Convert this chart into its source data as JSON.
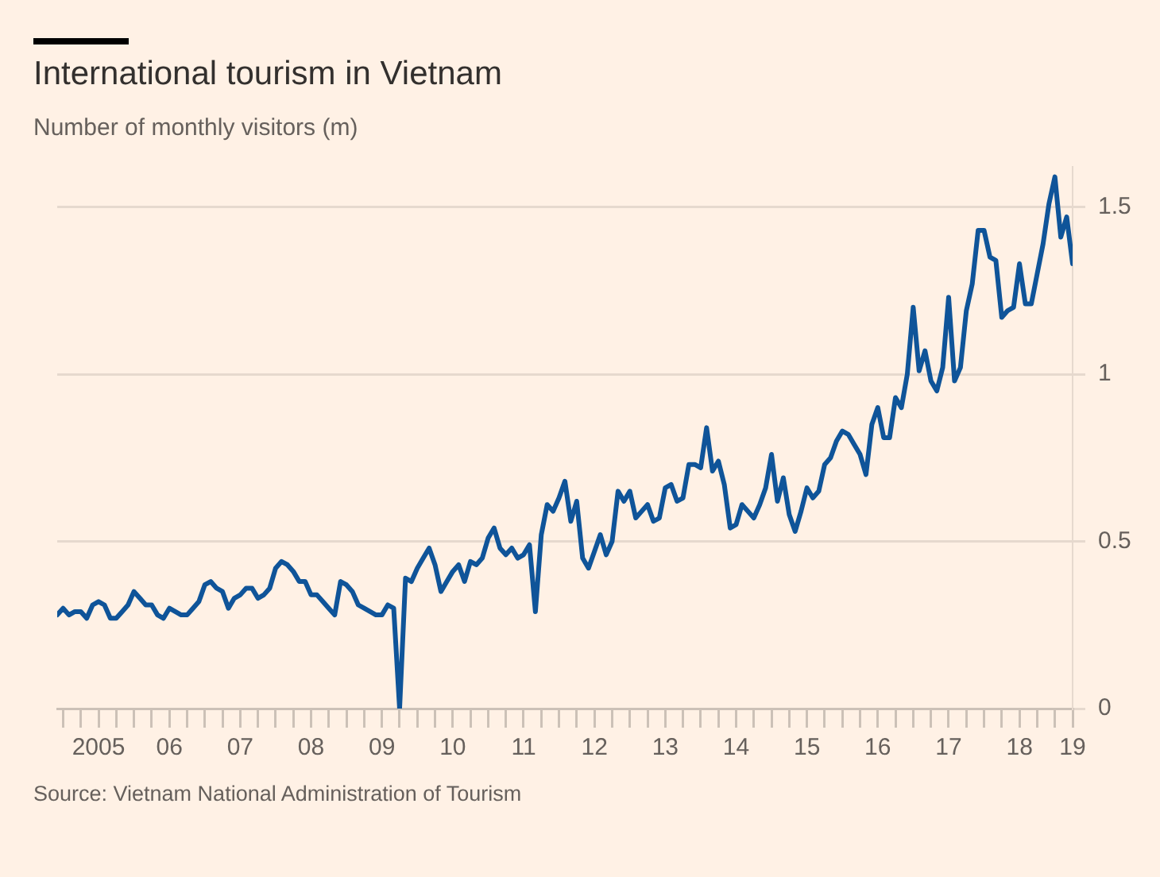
{
  "chart_data": {
    "type": "line",
    "title": "International tourism in Vietnam",
    "subtitle": "Number of monthly visitors (m)",
    "annotations": [
      "Source: Vietnam National Administration of Tourism"
    ],
    "x": [
      "2004-12",
      "2005-01",
      "2005-02",
      "2005-03",
      "2005-04",
      "2005-05",
      "2005-06",
      "2005-07",
      "2005-08",
      "2005-09",
      "2005-10",
      "2005-11",
      "2005-12",
      "2006-01",
      "2006-02",
      "2006-03",
      "2006-04",
      "2006-05",
      "2006-06",
      "2006-07",
      "2006-08",
      "2006-09",
      "2006-10",
      "2006-11",
      "2006-12",
      "2007-01",
      "2007-02",
      "2007-03",
      "2007-04",
      "2007-05",
      "2007-06",
      "2007-07",
      "2007-08",
      "2007-09",
      "2007-10",
      "2007-11",
      "2007-12",
      "2008-01",
      "2008-02",
      "2008-03",
      "2008-04",
      "2008-05",
      "2008-06",
      "2008-07",
      "2008-08",
      "2008-09",
      "2008-10",
      "2008-11",
      "2008-12",
      "2009-01",
      "2009-02",
      "2009-03",
      "2009-04",
      "2009-05",
      "2009-06",
      "2009-07",
      "2009-08",
      "2009-09",
      "2009-10",
      "2009-11",
      "2009-12",
      "2010-01",
      "2010-02",
      "2010-03",
      "2010-04",
      "2010-05",
      "2010-06",
      "2010-07",
      "2010-08",
      "2010-09",
      "2010-10",
      "2010-11",
      "2010-12",
      "2011-01",
      "2011-02",
      "2011-03",
      "2011-04",
      "2011-05",
      "2011-06",
      "2011-07",
      "2011-08",
      "2011-09",
      "2011-10",
      "2011-11",
      "2011-12",
      "2012-01",
      "2012-02",
      "2012-03",
      "2012-04",
      "2012-05",
      "2012-06",
      "2012-07",
      "2012-08",
      "2012-09",
      "2012-10",
      "2012-11",
      "2012-12",
      "2013-01",
      "2013-02",
      "2013-03",
      "2013-04",
      "2013-05",
      "2013-06",
      "2013-07",
      "2013-08",
      "2013-09",
      "2013-10",
      "2013-11",
      "2013-12",
      "2014-01",
      "2014-02",
      "2014-03",
      "2014-04",
      "2014-05",
      "2014-06",
      "2014-07",
      "2014-08",
      "2014-09",
      "2014-10",
      "2014-11",
      "2014-12",
      "2015-01",
      "2015-02",
      "2015-03",
      "2015-04",
      "2015-05",
      "2015-06",
      "2015-07",
      "2015-08",
      "2015-09",
      "2015-10",
      "2015-11",
      "2015-12",
      "2016-01",
      "2016-02",
      "2016-03",
      "2016-04",
      "2016-05",
      "2016-06",
      "2016-07",
      "2016-08",
      "2016-09",
      "2016-10",
      "2016-11",
      "2016-12",
      "2017-01",
      "2017-02",
      "2017-03",
      "2017-04",
      "2017-05",
      "2017-06",
      "2017-07",
      "2017-08",
      "2017-09",
      "2017-10",
      "2017-11",
      "2017-12",
      "2018-01",
      "2018-02",
      "2018-03",
      "2018-04",
      "2018-05",
      "2018-06",
      "2018-07",
      "2018-08",
      "2018-09",
      "2018-10",
      "2018-11",
      "2018-12",
      "2019-01",
      "2019-02",
      "2019-03",
      "2019-04"
    ],
    "series": [
      {
        "color": "#0f5499",
        "values": [
          0.28,
          0.3,
          0.28,
          0.29,
          0.29,
          0.27,
          0.31,
          0.32,
          0.31,
          0.27,
          0.27,
          0.29,
          0.31,
          0.35,
          0.33,
          0.31,
          0.31,
          0.28,
          0.27,
          0.3,
          0.29,
          0.28,
          0.28,
          0.3,
          0.32,
          0.37,
          0.38,
          0.36,
          0.35,
          0.3,
          0.33,
          0.34,
          0.36,
          0.36,
          0.33,
          0.34,
          0.36,
          0.42,
          0.44,
          0.43,
          0.41,
          0.38,
          0.38,
          0.34,
          0.34,
          0.32,
          0.3,
          0.28,
          0.38,
          0.37,
          0.35,
          0.31,
          0.3,
          0.29,
          0.28,
          0.28,
          0.31,
          0.3,
          0.0,
          0.39,
          0.38,
          0.42,
          0.45,
          0.48,
          0.43,
          0.35,
          0.38,
          0.41,
          0.43,
          0.38,
          0.44,
          0.43,
          0.45,
          0.51,
          0.54,
          0.48,
          0.46,
          0.48,
          0.45,
          0.46,
          0.49,
          0.29,
          0.52,
          0.61,
          0.59,
          0.63,
          0.68,
          0.56,
          0.62,
          0.45,
          0.42,
          0.47,
          0.52,
          0.46,
          0.5,
          0.65,
          0.62,
          0.65,
          0.57,
          0.59,
          0.61,
          0.56,
          0.57,
          0.66,
          0.67,
          0.62,
          0.63,
          0.73,
          0.73,
          0.72,
          0.84,
          0.71,
          0.74,
          0.67,
          0.54,
          0.55,
          0.61,
          0.59,
          0.57,
          0.61,
          0.66,
          0.76,
          0.62,
          0.69,
          0.58,
          0.53,
          0.59,
          0.66,
          0.63,
          0.65,
          0.73,
          0.75,
          0.8,
          0.83,
          0.82,
          0.79,
          0.76,
          0.7,
          0.85,
          0.9,
          0.81,
          0.81,
          0.93,
          0.9,
          1.0,
          1.2,
          1.01,
          1.07,
          0.98,
          0.95,
          1.02,
          1.23,
          0.98,
          1.02,
          1.19,
          1.27,
          1.43,
          1.43,
          1.35,
          1.34,
          1.17,
          1.19,
          1.2,
          1.33,
          1.21,
          1.21,
          1.3,
          1.39,
          1.51,
          1.59,
          1.41,
          1.47,
          1.33
        ]
      }
    ],
    "xlim": [
      "2004-12",
      "2019-04"
    ],
    "xticks": [
      {
        "value": "2005-01",
        "label": null
      },
      {
        "value": "2005-04",
        "label": null
      },
      {
        "value": "2005-07",
        "label": "2005"
      },
      {
        "value": "2005-10",
        "label": null
      },
      {
        "value": "2006-01",
        "label": null
      },
      {
        "value": "2006-04",
        "label": null
      },
      {
        "value": "2006-07",
        "label": "06"
      },
      {
        "value": "2006-10",
        "label": null
      },
      {
        "value": "2007-01",
        "label": null
      },
      {
        "value": "2007-04",
        "label": null
      },
      {
        "value": "2007-07",
        "label": "07"
      },
      {
        "value": "2007-10",
        "label": null
      },
      {
        "value": "2008-01",
        "label": null
      },
      {
        "value": "2008-04",
        "label": null
      },
      {
        "value": "2008-07",
        "label": "08"
      },
      {
        "value": "2008-10",
        "label": null
      },
      {
        "value": "2009-01",
        "label": null
      },
      {
        "value": "2009-04",
        "label": null
      },
      {
        "value": "2009-07",
        "label": "09"
      },
      {
        "value": "2009-10",
        "label": null
      },
      {
        "value": "2010-01",
        "label": null
      },
      {
        "value": "2010-04",
        "label": null
      },
      {
        "value": "2010-07",
        "label": "10"
      },
      {
        "value": "2010-10",
        "label": null
      },
      {
        "value": "2011-01",
        "label": null
      },
      {
        "value": "2011-04",
        "label": null
      },
      {
        "value": "2011-07",
        "label": "11"
      },
      {
        "value": "2011-10",
        "label": null
      },
      {
        "value": "2012-01",
        "label": null
      },
      {
        "value": "2012-04",
        "label": null
      },
      {
        "value": "2012-07",
        "label": "12"
      },
      {
        "value": "2012-10",
        "label": null
      },
      {
        "value": "2013-01",
        "label": null
      },
      {
        "value": "2013-04",
        "label": null
      },
      {
        "value": "2013-07",
        "label": "13"
      },
      {
        "value": "2013-10",
        "label": null
      },
      {
        "value": "2014-01",
        "label": null
      },
      {
        "value": "2014-04",
        "label": null
      },
      {
        "value": "2014-07",
        "label": "14"
      },
      {
        "value": "2014-10",
        "label": null
      },
      {
        "value": "2015-01",
        "label": null
      },
      {
        "value": "2015-04",
        "label": null
      },
      {
        "value": "2015-07",
        "label": "15"
      },
      {
        "value": "2015-10",
        "label": null
      },
      {
        "value": "2016-01",
        "label": null
      },
      {
        "value": "2016-04",
        "label": null
      },
      {
        "value": "2016-07",
        "label": "16"
      },
      {
        "value": "2016-10",
        "label": null
      },
      {
        "value": "2017-01",
        "label": null
      },
      {
        "value": "2017-04",
        "label": null
      },
      {
        "value": "2017-07",
        "label": "17"
      },
      {
        "value": "2017-10",
        "label": null
      },
      {
        "value": "2018-01",
        "label": null
      },
      {
        "value": "2018-04",
        "label": null
      },
      {
        "value": "2018-07",
        "label": "18"
      },
      {
        "value": "2018-10",
        "label": null
      },
      {
        "value": "2019-01",
        "label": null
      },
      {
        "value": "2019-04",
        "label": "19"
      }
    ],
    "ylim": [
      0,
      1.62
    ],
    "yticks": [
      0,
      0.5,
      1,
      1.5
    ],
    "grid": "y",
    "legend": false,
    "marker": "none",
    "line_style": "solid"
  }
}
